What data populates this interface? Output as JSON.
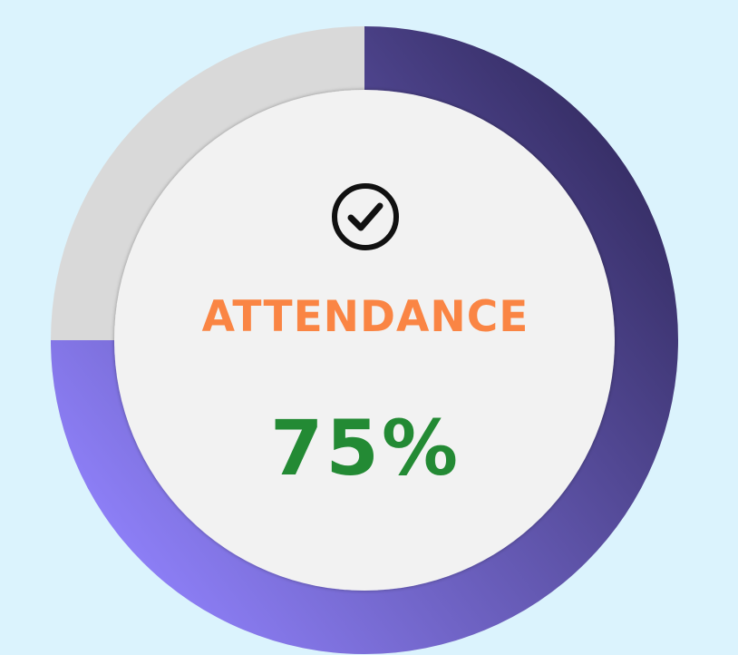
{
  "widget": {
    "title": "ATTENDANCE",
    "value_text": "75%",
    "progress": 0.75,
    "icon": "check-circle-icon"
  },
  "colors": {
    "background": "#dbf3fd",
    "track": "#d9d9d9",
    "inner": "#f2f2f2",
    "progress_start": "#332b60",
    "progress_end": "#8d7ff7",
    "title": "#fa8544",
    "value": "#238a34",
    "icon": "#111111"
  }
}
